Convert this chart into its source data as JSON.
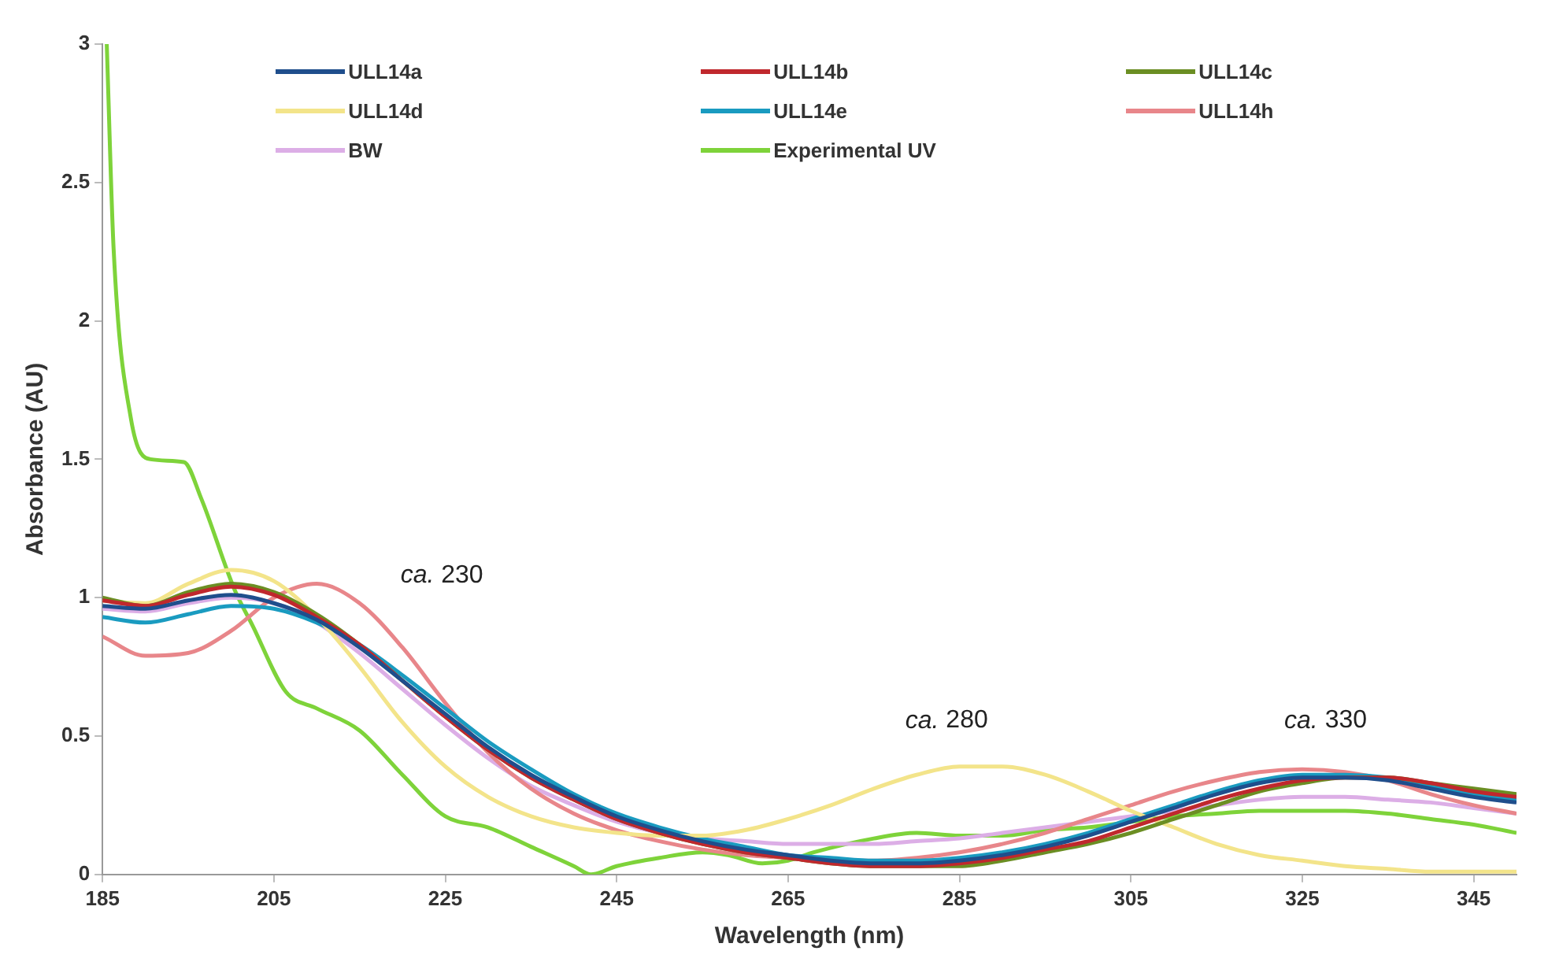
{
  "chart_data": {
    "type": "line",
    "xlabel": "Wavelength (nm)",
    "ylabel": "Absorbance (AU)",
    "xlim": [
      185,
      350
    ],
    "xticks": [
      185,
      205,
      225,
      245,
      265,
      285,
      305,
      325,
      345
    ],
    "ylim": [
      0,
      3
    ],
    "yticks": [
      0,
      0.5,
      1,
      1.5,
      2,
      2.5,
      3
    ],
    "grid": false,
    "legend": "top",
    "marker": "none",
    "line_style": "solid",
    "x": [
      185,
      190,
      195,
      200,
      205,
      210,
      215,
      220,
      225,
      230,
      235,
      240,
      245,
      250,
      255,
      260,
      265,
      270,
      275,
      280,
      285,
      290,
      295,
      300,
      305,
      310,
      315,
      320,
      325,
      330,
      335,
      340,
      345,
      350
    ],
    "annotations": [
      "ca. 230",
      "ca. 280",
      "ca. 330"
    ],
    "series": [
      {
        "name": "ULL14a",
        "color": "#1f4e8c",
        "values": [
          0.97,
          0.96,
          0.99,
          1.01,
          0.98,
          0.92,
          0.82,
          0.7,
          0.58,
          0.46,
          0.36,
          0.28,
          0.21,
          0.16,
          0.12,
          0.09,
          0.07,
          0.05,
          0.04,
          0.04,
          0.05,
          0.07,
          0.1,
          0.14,
          0.19,
          0.24,
          0.29,
          0.33,
          0.35,
          0.35,
          0.34,
          0.31,
          0.28,
          0.26
        ]
      },
      {
        "name": "ULL14b",
        "color": "#c0282d",
        "values": [
          0.99,
          0.97,
          1.01,
          1.04,
          1.01,
          0.93,
          0.83,
          0.7,
          0.57,
          0.45,
          0.35,
          0.27,
          0.2,
          0.15,
          0.11,
          0.08,
          0.06,
          0.04,
          0.03,
          0.03,
          0.04,
          0.06,
          0.09,
          0.12,
          0.17,
          0.22,
          0.27,
          0.31,
          0.34,
          0.35,
          0.35,
          0.33,
          0.3,
          0.28
        ]
      },
      {
        "name": "ULL14c",
        "color": "#6b8e23",
        "values": [
          1.0,
          0.97,
          1.02,
          1.05,
          1.02,
          0.94,
          0.83,
          0.7,
          0.57,
          0.45,
          0.35,
          0.27,
          0.2,
          0.15,
          0.11,
          0.08,
          0.06,
          0.04,
          0.03,
          0.03,
          0.03,
          0.05,
          0.08,
          0.11,
          0.15,
          0.2,
          0.25,
          0.3,
          0.33,
          0.35,
          0.35,
          0.33,
          0.31,
          0.29
        ]
      },
      {
        "name": "ULL14d",
        "color": "#f3e48a",
        "values": [
          0.99,
          0.98,
          1.05,
          1.1,
          1.06,
          0.93,
          0.75,
          0.55,
          0.39,
          0.28,
          0.21,
          0.17,
          0.15,
          0.14,
          0.14,
          0.16,
          0.2,
          0.25,
          0.31,
          0.36,
          0.39,
          0.39,
          0.36,
          0.3,
          0.23,
          0.17,
          0.11,
          0.07,
          0.05,
          0.03,
          0.02,
          0.01,
          0.01,
          0.01
        ]
      },
      {
        "name": "ULL14e",
        "color": "#1a9bc0",
        "values": [
          0.93,
          0.91,
          0.94,
          0.97,
          0.96,
          0.91,
          0.83,
          0.72,
          0.6,
          0.48,
          0.38,
          0.29,
          0.22,
          0.17,
          0.13,
          0.1,
          0.07,
          0.06,
          0.05,
          0.05,
          0.06,
          0.08,
          0.11,
          0.15,
          0.2,
          0.25,
          0.3,
          0.34,
          0.36,
          0.36,
          0.35,
          0.32,
          0.29,
          0.27
        ]
      },
      {
        "name": "ULL14h",
        "color": "#e8868a",
        "values": [
          0.86,
          0.79,
          0.8,
          0.88,
          1.0,
          1.05,
          0.98,
          0.82,
          0.62,
          0.44,
          0.31,
          0.22,
          0.16,
          0.12,
          0.09,
          0.07,
          0.06,
          0.05,
          0.05,
          0.06,
          0.08,
          0.11,
          0.15,
          0.2,
          0.25,
          0.3,
          0.34,
          0.37,
          0.38,
          0.37,
          0.34,
          0.29,
          0.25,
          0.22
        ]
      },
      {
        "name": "BW",
        "color": "#dcaee6",
        "values": [
          0.96,
          0.95,
          0.98,
          1.0,
          0.98,
          0.91,
          0.8,
          0.67,
          0.54,
          0.42,
          0.32,
          0.25,
          0.19,
          0.15,
          0.13,
          0.12,
          0.11,
          0.11,
          0.11,
          0.12,
          0.13,
          0.15,
          0.17,
          0.19,
          0.21,
          0.23,
          0.25,
          0.27,
          0.28,
          0.28,
          0.27,
          0.26,
          0.24,
          0.22
        ]
      },
      {
        "name": "Experimental UV",
        "color": "#7ed33a",
        "x": [
          185.5,
          186.3,
          188.3,
          190.6,
          194.5,
          196.5,
          200.4,
          202.5,
          206.4,
          210,
          215,
          220,
          225,
          230,
          235,
          240,
          242,
          245,
          250,
          255,
          258,
          262,
          265,
          268,
          275,
          280,
          285,
          290,
          295,
          300,
          305,
          310,
          315,
          320,
          325,
          330,
          335,
          340,
          345,
          350
        ],
        "values": [
          3.0,
          2.26,
          1.65,
          1.5,
          1.49,
          1.36,
          1.03,
          0.9,
          0.66,
          0.6,
          0.52,
          0.36,
          0.21,
          0.17,
          0.1,
          0.03,
          0.0,
          0.03,
          0.06,
          0.08,
          0.07,
          0.04,
          0.05,
          0.08,
          0.13,
          0.15,
          0.14,
          0.14,
          0.16,
          0.17,
          0.19,
          0.21,
          0.22,
          0.23,
          0.23,
          0.23,
          0.22,
          0.2,
          0.18,
          0.15
        ]
      }
    ]
  }
}
